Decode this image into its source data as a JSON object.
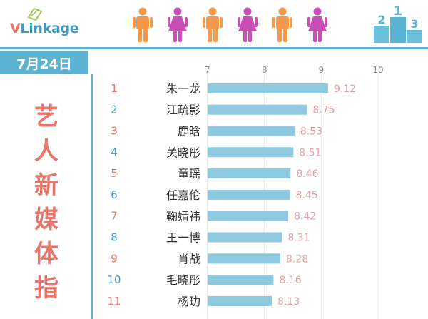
{
  "header": {
    "logo": {
      "v": "V",
      "rest": "Linkage"
    },
    "podium_ranks": [
      "2",
      "1",
      "3"
    ],
    "figures": [
      {
        "gender": "male",
        "color": "#f39a4a"
      },
      {
        "gender": "female",
        "color": "#c84fb5"
      },
      {
        "gender": "male",
        "color": "#f39a4a"
      },
      {
        "gender": "female",
        "color": "#c84fb5"
      },
      {
        "gender": "male",
        "color": "#f39a4a"
      },
      {
        "gender": "female",
        "color": "#c84fb5"
      }
    ]
  },
  "date_label": "7月24日",
  "vertical_title": [
    "艺",
    "人",
    "新",
    "媒",
    "体",
    "指"
  ],
  "colors": {
    "accent": "#5bb3d3",
    "title": "#e8746a",
    "rank": "#e8746a",
    "rank_alt": "#4aa3c8",
    "bar": "#8dcae0",
    "value_label": "#e0a0a6"
  },
  "chart_data": {
    "type": "bar",
    "orientation": "horizontal",
    "xlim": [
      7,
      10
    ],
    "x_ticks": [
      "7",
      "8",
      "9",
      "10"
    ],
    "grid": true,
    "ranks": [
      "1",
      "2",
      "3",
      "4",
      "5",
      "6",
      "7",
      "8",
      "9",
      "10",
      "11"
    ],
    "categories": [
      "朱一龙",
      "江疏影",
      "鹿晗",
      "关晓彤",
      "童瑶",
      "任嘉伦",
      "鞠婧祎",
      "王一博",
      "肖战",
      "毛晓彤",
      "杨玏"
    ],
    "values": [
      9.12,
      8.75,
      8.53,
      8.51,
      8.46,
      8.45,
      8.42,
      8.31,
      8.28,
      8.16,
      8.13
    ],
    "value_labels": [
      "9.12",
      "8.75",
      "8.53",
      "8.51",
      "8.46",
      "8.45",
      "8.42",
      "8.31",
      "8.28",
      "8.16",
      "8.13"
    ]
  }
}
